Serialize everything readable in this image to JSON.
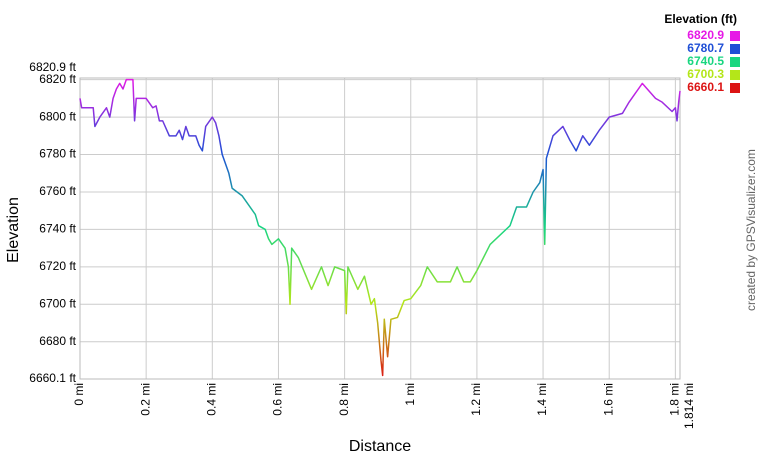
{
  "chart_data": {
    "type": "line",
    "x_label": "Distance",
    "y_label": "Elevation",
    "credit": "created by GPSVisualizer.com",
    "x": [
      0,
      0.005,
      0.04,
      0.045,
      0.06,
      0.08,
      0.09,
      0.1,
      0.11,
      0.12,
      0.13,
      0.14,
      0.16,
      0.165,
      0.17,
      0.2,
      0.22,
      0.23,
      0.24,
      0.25,
      0.27,
      0.29,
      0.3,
      0.31,
      0.32,
      0.33,
      0.35,
      0.36,
      0.37,
      0.38,
      0.4,
      0.41,
      0.42,
      0.43,
      0.45,
      0.46,
      0.49,
      0.53,
      0.54,
      0.56,
      0.57,
      0.58,
      0.6,
      0.62,
      0.63,
      0.635,
      0.64,
      0.66,
      0.7,
      0.73,
      0.75,
      0.77,
      0.8,
      0.805,
      0.81,
      0.84,
      0.86,
      0.88,
      0.89,
      0.9,
      0.91,
      0.915,
      0.92,
      0.93,
      0.94,
      0.96,
      0.98,
      1.0,
      1.03,
      1.05,
      1.08,
      1.12,
      1.14,
      1.16,
      1.18,
      1.2,
      1.22,
      1.24,
      1.3,
      1.32,
      1.35,
      1.37,
      1.39,
      1.4,
      1.405,
      1.41,
      1.43,
      1.46,
      1.48,
      1.5,
      1.52,
      1.54,
      1.57,
      1.6,
      1.64,
      1.66,
      1.7,
      1.72,
      1.74,
      1.76,
      1.79,
      1.8,
      1.805,
      1.81,
      1.814
    ],
    "y": [
      6810,
      6805,
      6805,
      6795,
      6800,
      6805,
      6800,
      6810,
      6815,
      6818,
      6815,
      6820,
      6820,
      6798,
      6810,
      6810,
      6805,
      6806,
      6798,
      6798,
      6790,
      6790,
      6793,
      6788,
      6795,
      6790,
      6790,
      6785,
      6782,
      6795,
      6800,
      6797,
      6790,
      6780,
      6770,
      6762,
      6758,
      6748,
      6742,
      6740,
      6735,
      6732,
      6735,
      6730,
      6720,
      6700,
      6730,
      6725,
      6708,
      6720,
      6710,
      6720,
      6718,
      6695,
      6720,
      6708,
      6715,
      6700,
      6703,
      6690,
      6670,
      6662,
      6692,
      6672,
      6692,
      6693,
      6702,
      6703,
      6710,
      6720,
      6712,
      6712,
      6720,
      6712,
      6712,
      6718,
      6725,
      6732,
      6742,
      6752,
      6752,
      6760,
      6765,
      6772,
      6732,
      6778,
      6790,
      6795,
      6788,
      6782,
      6790,
      6785,
      6793,
      6800,
      6802,
      6808,
      6818,
      6814,
      6810,
      6808,
      6803,
      6805,
      6798,
      6808,
      6814
    ],
    "xlim": [
      0,
      1.814
    ],
    "ylim": [
      6660.1,
      6820.9
    ],
    "xticks": [
      {
        "value": 0,
        "label": "0 mi"
      },
      {
        "value": 0.2,
        "label": "0.2 mi"
      },
      {
        "value": 0.4,
        "label": "0.4 mi"
      },
      {
        "value": 0.6,
        "label": "0.6 mi"
      },
      {
        "value": 0.8,
        "label": "0.8 mi"
      },
      {
        "value": 1,
        "label": "1 mi"
      },
      {
        "value": 1.2,
        "label": "1.2 mi"
      },
      {
        "value": 1.4,
        "label": "1.4 mi"
      },
      {
        "value": 1.6,
        "label": "1.6 mi"
      },
      {
        "value": 1.8,
        "label": "1.8 mi"
      },
      {
        "value": 1.814,
        "label": "1.814 mi"
      }
    ],
    "yticks": [
      {
        "value": 6660.1,
        "label": "6660.1 ft"
      },
      {
        "value": 6680,
        "label": "6680 ft"
      },
      {
        "value": 6700,
        "label": "6700 ft"
      },
      {
        "value": 6720,
        "label": "6720 ft"
      },
      {
        "value": 6740,
        "label": "6740 ft"
      },
      {
        "value": 6760,
        "label": "6760 ft"
      },
      {
        "value": 6780,
        "label": "6780 ft"
      },
      {
        "value": 6800,
        "label": "6800 ft"
      },
      {
        "value": 6820,
        "label": "6820 ft"
      },
      {
        "value": 6820.9,
        "label": "6820.9 ft"
      }
    ],
    "grid": true,
    "legend": {
      "title": "Elevation (ft)",
      "values": [
        6820.9,
        6780.7,
        6740.5,
        6700.3,
        6660.1
      ],
      "colors": [
        "#e619e6",
        "#1f4fd6",
        "#19d680",
        "#b4e619",
        "#dc1414"
      ]
    }
  }
}
